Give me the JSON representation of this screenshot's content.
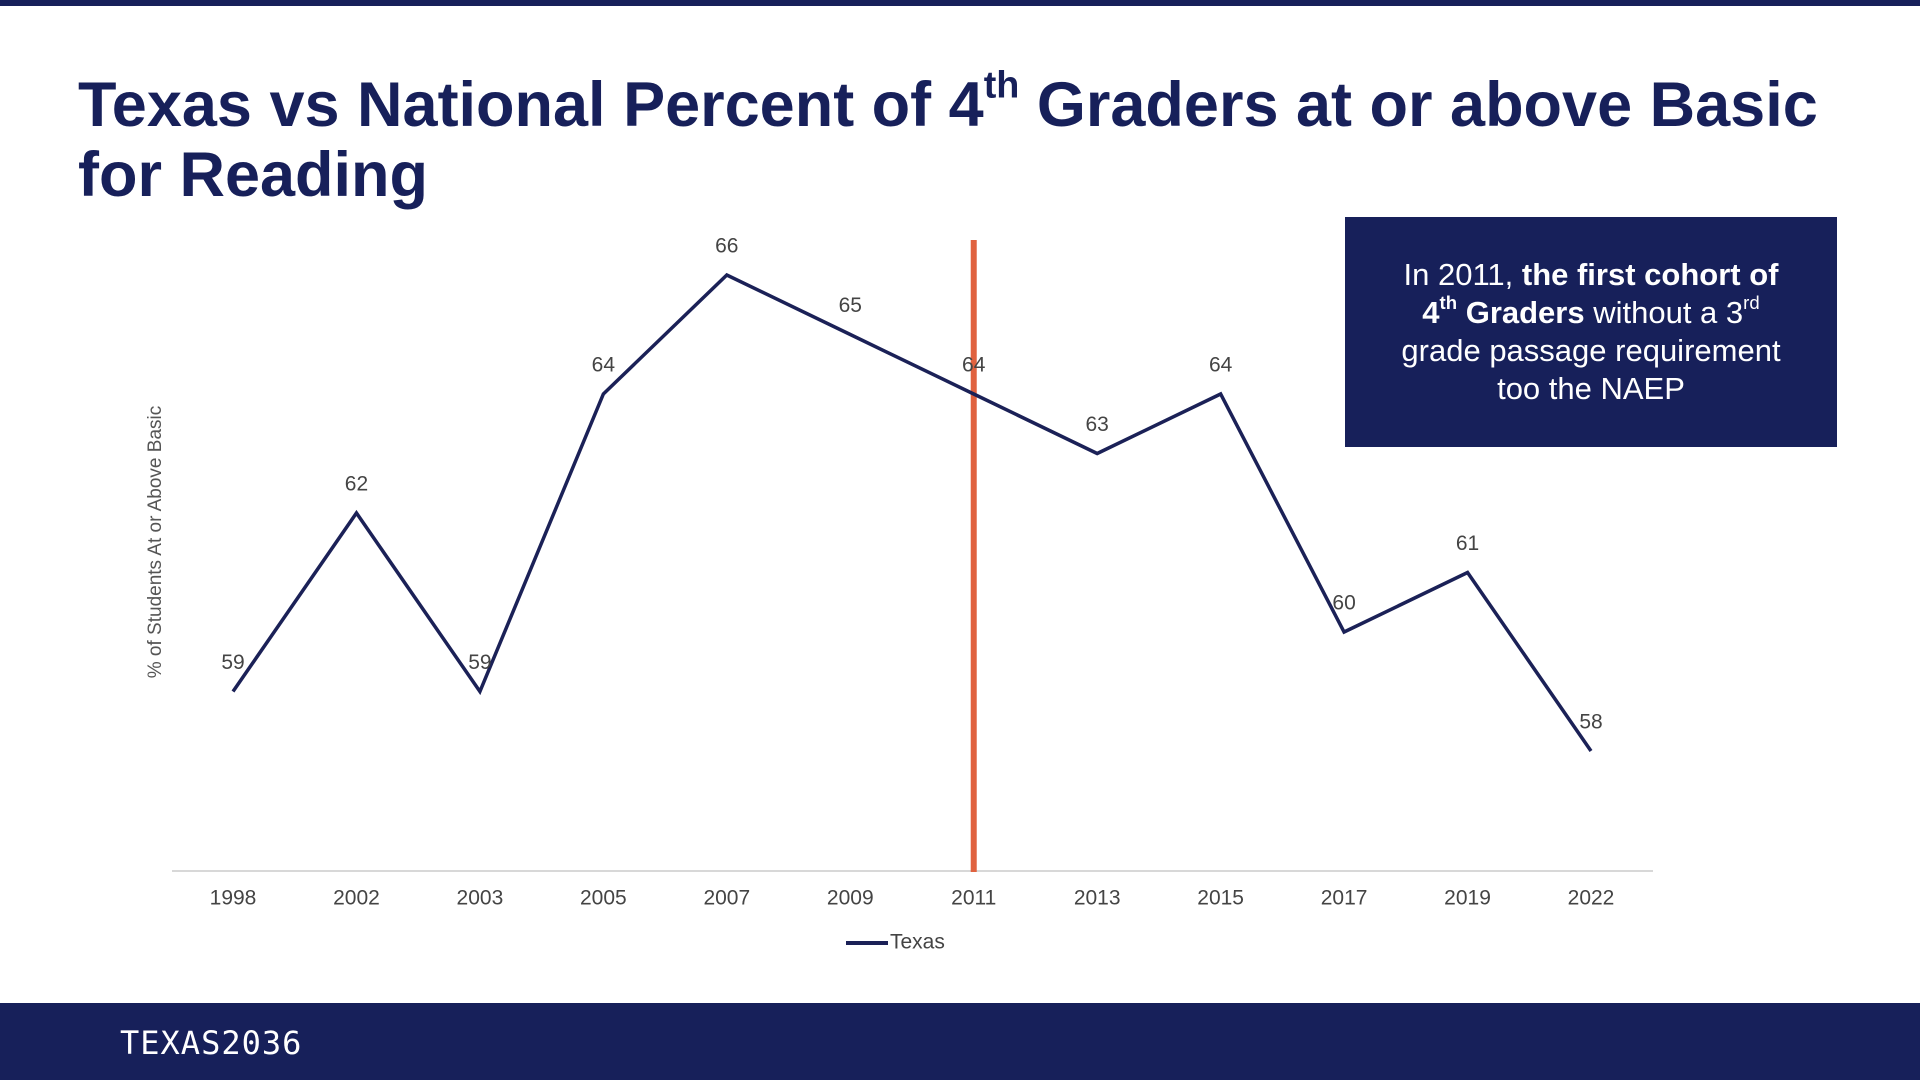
{
  "chart_data": {
    "type": "line",
    "title": [
      {
        "text": "Texas vs National Percent of 4"
      },
      {
        "text": "th",
        "sup": true
      },
      {
        "text": " Graders at or above Basic for Reading"
      }
    ],
    "y_label": "% of Students At or Above Basic",
    "categories": [
      "1998",
      "2002",
      "2003",
      "2005",
      "2007",
      "2009",
      "2011",
      "2013",
      "2015",
      "2017",
      "2019",
      "2022"
    ],
    "series": [
      {
        "name": "Texas",
        "color": "#1b2157",
        "values": [
          59,
          62,
          59,
          64,
          66,
          65,
          64,
          63,
          64,
          60,
          61,
          58
        ]
      }
    ],
    "ylim": [
      56,
      68
    ],
    "highlight_index": 6,
    "highlight_color": "#e0623f",
    "annotation": [
      [
        {
          "text": "In 2011, "
        },
        {
          "text": "the first cohort of",
          "bold": true
        }
      ],
      [
        {
          "text": "4",
          "bold": true
        },
        {
          "text": "th",
          "bold": true,
          "sup": true
        },
        {
          "text": " Graders",
          "bold": true
        },
        {
          "text": " without a 3"
        },
        {
          "text": "rd",
          "sup": true
        }
      ],
      [
        {
          "text": "grade passage requirement"
        }
      ],
      [
        {
          "text": "too the NAEP"
        }
      ]
    ]
  },
  "footer": {
    "logo": "TEXAS2036"
  }
}
